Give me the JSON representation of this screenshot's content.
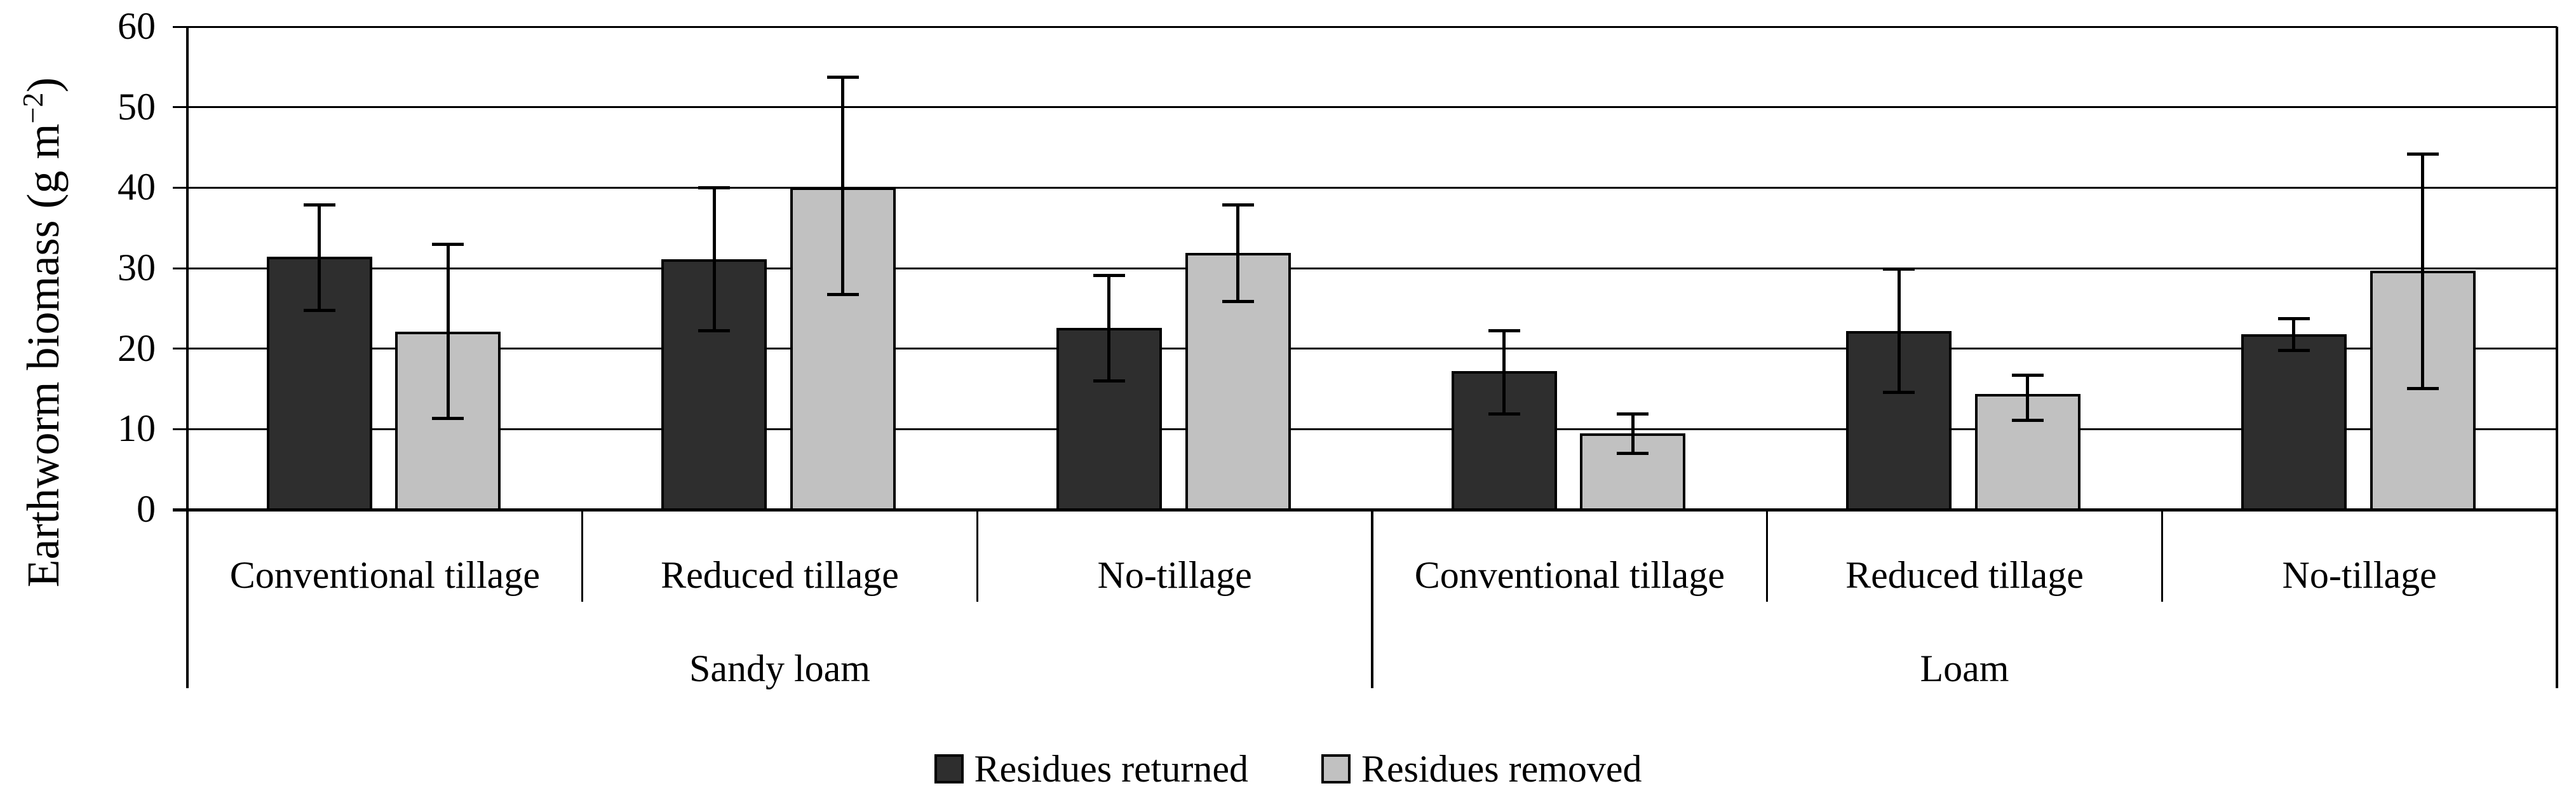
{
  "chart_data": {
    "type": "bar",
    "title": "",
    "ylabel_parts": {
      "main": "Earthworm biomass (g m",
      "sup": "−2",
      "close": ")"
    },
    "xlabel": "",
    "ylim": [
      0,
      60
    ],
    "y_ticks": [
      0,
      10,
      20,
      30,
      40,
      50,
      60
    ],
    "grid": "horizontal gridlines on, black",
    "legend_position": "bottom-center",
    "soil_groups": [
      {
        "label": "Sandy loam",
        "tillage": [
          "Conventional tillage",
          "Reduced tillage",
          "No-tillage"
        ]
      },
      {
        "label": "Loam",
        "tillage": [
          "Conventional tillage",
          "Reduced tillage",
          "No-tillage"
        ]
      }
    ],
    "categories": [
      "Sandy loam / Conventional tillage",
      "Sandy loam / Reduced tillage",
      "Sandy loam / No-tillage",
      "Loam / Conventional tillage",
      "Loam / Reduced tillage",
      "Loam / No-tillage"
    ],
    "series": [
      {
        "name": "Residues returned",
        "color": "#2e2e2e",
        "values": [
          31.4,
          31.1,
          22.6,
          17.2,
          22.2,
          21.8
        ],
        "error_high": [
          37.9,
          40.0,
          29.1,
          22.3,
          29.9,
          23.8
        ],
        "error_low": [
          24.8,
          22.3,
          16.0,
          11.9,
          14.6,
          19.8
        ]
      },
      {
        "name": "Residues removed",
        "color": "#c1c1c1",
        "values": [
          22.1,
          40.0,
          31.9,
          9.5,
          14.4,
          29.7
        ],
        "error_high": [
          33.0,
          53.8,
          37.9,
          11.9,
          16.7,
          44.2
        ],
        "error_low": [
          11.4,
          26.8,
          25.9,
          7.0,
          11.1,
          15.1
        ]
      }
    ],
    "colors": {
      "axis": "#000000",
      "bar_border": "#000000",
      "error_bar": "#000000"
    }
  }
}
